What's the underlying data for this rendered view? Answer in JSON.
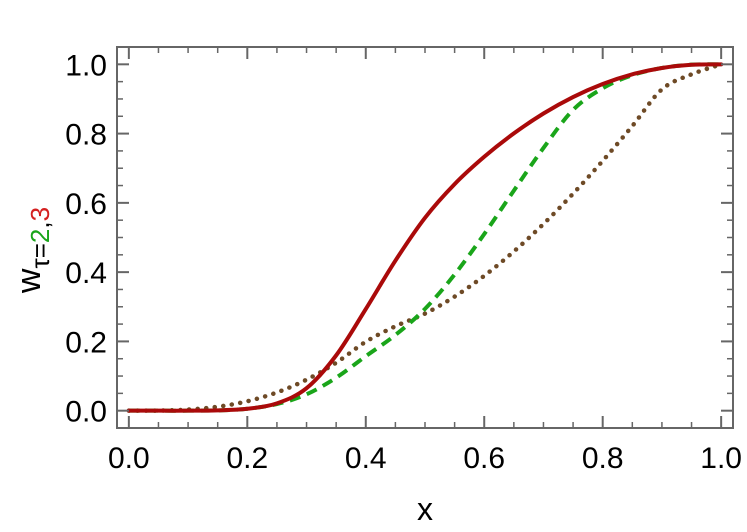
{
  "chart_data": {
    "type": "line",
    "title": "",
    "xlabel": "x",
    "ylabel": {
      "main": "w",
      "subscript": [
        {
          "text": "τ=",
          "color": "#000000"
        },
        {
          "text": "2",
          "color": "#1aa51a"
        },
        {
          "text": ",",
          "color": "#000000"
        },
        {
          "text": "3",
          "color": "#d42020"
        }
      ]
    },
    "xlim": [
      -0.02,
      1.02
    ],
    "ylim": [
      -0.05,
      1.05
    ],
    "x_ticks": [
      {
        "value": 0.0,
        "label": "0.0"
      },
      {
        "value": 0.2,
        "label": "0.2"
      },
      {
        "value": 0.4,
        "label": "0.4"
      },
      {
        "value": 0.6,
        "label": "0.6"
      },
      {
        "value": 0.8,
        "label": "0.8"
      },
      {
        "value": 1.0,
        "label": "1.0"
      }
    ],
    "y_ticks": [
      {
        "value": 0.0,
        "label": "0.0"
      },
      {
        "value": 0.2,
        "label": "0.2"
      },
      {
        "value": 0.4,
        "label": "0.4"
      },
      {
        "value": 0.6,
        "label": "0.6"
      },
      {
        "value": 0.8,
        "label": "0.8"
      },
      {
        "value": 1.0,
        "label": "1.0"
      }
    ],
    "minor_tick_step": 0.05,
    "grid": false,
    "legend": "none",
    "frame_color": "#666666",
    "series": [
      {
        "style": "dotted",
        "color": "#6e4a26",
        "x": [
          0.0,
          0.05,
          0.1,
          0.15,
          0.2,
          0.25,
          0.3,
          0.35,
          0.4,
          0.45,
          0.5,
          0.55,
          0.6,
          0.65,
          0.7,
          0.75,
          0.8,
          0.85,
          0.9,
          0.95,
          1.0
        ],
        "values": [
          0.0,
          0.0003,
          0.0032,
          0.0113,
          0.0272,
          0.0527,
          0.0895,
          0.1384,
          0.199,
          0.2436,
          0.2803,
          0.3293,
          0.3894,
          0.4597,
          0.5391,
          0.6266,
          0.7212,
          0.8219,
          0.9277,
          0.9711,
          1.0
        ]
      },
      {
        "style": "dashed",
        "color": "#1aa51a",
        "x": [
          0.0,
          0.05,
          0.1,
          0.15,
          0.2,
          0.25,
          0.3,
          0.35,
          0.4,
          0.45,
          0.5,
          0.55,
          0.6,
          0.65,
          0.7,
          0.75,
          0.8,
          0.85,
          0.9,
          0.95,
          1.0
        ],
        "values": [
          0.0,
          0.0,
          0.0,
          0.0009,
          0.0055,
          0.019,
          0.0472,
          0.0952,
          0.1573,
          0.2185,
          0.294,
          0.3932,
          0.51,
          0.6354,
          0.7585,
          0.8684,
          0.9308,
          0.9686,
          0.9895,
          0.999,
          1.0
        ]
      },
      {
        "style": "solid",
        "color": "#aa0a0a",
        "x": [
          0.0,
          0.05,
          0.1,
          0.15,
          0.2,
          0.25,
          0.3,
          0.35,
          0.4,
          0.45,
          0.5,
          0.55,
          0.6,
          0.65,
          0.7,
          0.75,
          0.8,
          0.85,
          0.9,
          0.95,
          1.0
        ],
        "values": [
          0.0,
          0.0,
          0.0,
          0.0009,
          0.0055,
          0.0212,
          0.0648,
          0.1597,
          0.2934,
          0.4331,
          0.5569,
          0.6542,
          0.7331,
          0.8005,
          0.858,
          0.9055,
          0.9431,
          0.9711,
          0.9894,
          0.9988,
          1.0
        ]
      }
    ]
  }
}
